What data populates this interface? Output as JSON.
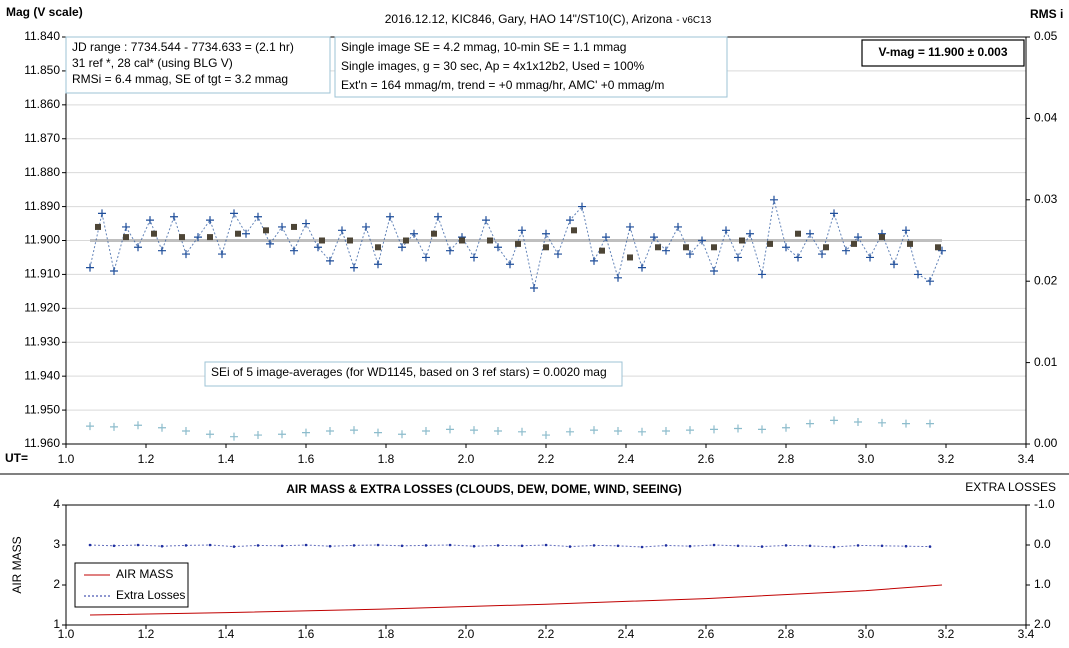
{
  "chart_data": [
    {
      "type": "scatter",
      "title": "2016.12.12,  KIC846, Gary, HAO 14\"/ST10(C), Arizona",
      "subtitle": "- v6C13",
      "ylabel": "Mag (V scale)",
      "y2label": "RMS i",
      "xlabel": "UT=",
      "xlim": [
        1.0,
        3.4
      ],
      "xticks": [
        {
          "value": 1.0,
          "label": "1.0"
        },
        1.2,
        1.4,
        1.6,
        1.8,
        {
          "value": 2.0,
          "label": "2.0"
        },
        2.2,
        2.4,
        2.6,
        2.8,
        {
          "value": 3.0,
          "label": "3.0"
        },
        3.2,
        3.4
      ],
      "ylim": [
        11.84,
        11.96
      ],
      "y_inverted": true,
      "yticks": [
        {
          "value": 11.84,
          "label": "11.840"
        },
        {
          "value": 11.85,
          "label": "11.850"
        },
        {
          "value": 11.86,
          "label": "11.860"
        },
        {
          "value": 11.87,
          "label": "11.870"
        },
        {
          "value": 11.88,
          "label": "11.880"
        },
        {
          "value": 11.89,
          "label": "11.890"
        },
        {
          "value": 11.9,
          "label": "11.900"
        },
        {
          "value": 11.91,
          "label": "11.910"
        },
        {
          "value": 11.92,
          "label": "11.920"
        },
        {
          "value": 11.93,
          "label": "11.930"
        },
        {
          "value": 11.94,
          "label": "11.940"
        },
        {
          "value": 11.95,
          "label": "11.950"
        },
        {
          "value": 11.96,
          "label": "11.960"
        }
      ],
      "y2lim": [
        0,
        0.05
      ],
      "y2ticks": [
        {
          "value": 0,
          "label": "0.00"
        },
        0.01,
        0.02,
        0.03,
        0.04,
        0.05
      ],
      "grid": true,
      "annotations": [
        [
          "JD range  : 7734.544 - 7734.633 = (2.1 hr)",
          "31 ref *, 28 cal* (using BLG V)",
          "RMSi = 6.4 mmag, SE of tgt = 3.2 mmag"
        ],
        [
          "Single image SE = 4.2 mmag, 10-min SE = 1.1 mmag",
          "Single images, g = 30 sec, Ap = 4x1x12b2,  Used = 100%",
          "Ext'n = 164 mmag/m, trend = +0 mmag/hr, AMC' +0 mmag/m"
        ],
        [
          "V-mag = 11.900 ± 0.003"
        ],
        [
          "SEi of 5 image-averages (for WD1145, based on 3 ref stars) = 0.0020 mag"
        ]
      ],
      "series": [
        {
          "color": "#bfbfbf",
          "marker": "none",
          "line": "thick",
          "x": [
            1.06,
            3.19
          ],
          "values": [
            11.9,
            11.9
          ]
        },
        {
          "color": "#1f4e9a",
          "marker": "plus",
          "line": "dotted",
          "x": [
            1.06,
            1.09,
            1.12,
            1.15,
            1.18,
            1.21,
            1.24,
            1.27,
            1.3,
            1.33,
            1.36,
            1.39,
            1.42,
            1.45,
            1.48,
            1.51,
            1.54,
            1.57,
            1.6,
            1.63,
            1.66,
            1.69,
            1.72,
            1.75,
            1.78,
            1.81,
            1.84,
            1.87,
            1.9,
            1.93,
            1.96,
            1.99,
            2.02,
            2.05,
            2.08,
            2.11,
            2.14,
            2.17,
            2.2,
            2.23,
            2.26,
            2.29,
            2.32,
            2.35,
            2.38,
            2.41,
            2.44,
            2.47,
            2.5,
            2.53,
            2.56,
            2.59,
            2.62,
            2.65,
            2.68,
            2.71,
            2.74,
            2.77,
            2.8,
            2.83,
            2.86,
            2.89,
            2.92,
            2.95,
            2.98,
            3.01,
            3.04,
            3.07,
            3.1,
            3.13,
            3.16,
            3.19
          ],
          "values": [
            11.908,
            11.892,
            11.909,
            11.896,
            11.902,
            11.894,
            11.903,
            11.893,
            11.904,
            11.899,
            11.894,
            11.904,
            11.892,
            11.898,
            11.893,
            11.901,
            11.896,
            11.903,
            11.895,
            11.902,
            11.906,
            11.897,
            11.908,
            11.896,
            11.907,
            11.893,
            11.902,
            11.898,
            11.905,
            11.893,
            11.903,
            11.899,
            11.905,
            11.894,
            11.902,
            11.907,
            11.897,
            11.914,
            11.898,
            11.904,
            11.894,
            11.89,
            11.906,
            11.899,
            11.911,
            11.896,
            11.908,
            11.899,
            11.903,
            11.896,
            11.904,
            11.9,
            11.909,
            11.897,
            11.905,
            11.898,
            11.91,
            11.888,
            11.902,
            11.905,
            11.898,
            11.904,
            11.892,
            11.903,
            11.899,
            11.905,
            11.898,
            11.907,
            11.897,
            11.91,
            11.912,
            11.903
          ]
        },
        {
          "color": "#4d4536",
          "marker": "square",
          "line": "none",
          "x": [
            1.08,
            1.15,
            1.22,
            1.29,
            1.36,
            1.43,
            1.5,
            1.57,
            1.64,
            1.71,
            1.78,
            1.85,
            1.92,
            1.99,
            2.06,
            2.13,
            2.2,
            2.27,
            2.34,
            2.41,
            2.48,
            2.55,
            2.62,
            2.69,
            2.76,
            2.83,
            2.9,
            2.97,
            3.04,
            3.11,
            3.18
          ],
          "values": [
            11.896,
            11.899,
            11.898,
            11.899,
            11.899,
            11.898,
            11.897,
            11.896,
            11.9,
            11.9,
            11.902,
            11.9,
            11.898,
            11.9,
            11.9,
            11.901,
            11.902,
            11.897,
            11.903,
            11.905,
            11.902,
            11.902,
            11.902,
            11.9,
            11.901,
            11.898,
            11.902,
            11.901,
            11.899,
            11.901,
            11.902
          ]
        },
        {
          "color": "#8cbccc",
          "marker": "plus",
          "line": "none",
          "axis": "y2",
          "x": [
            1.06,
            1.12,
            1.18,
            1.24,
            1.3,
            1.36,
            1.42,
            1.48,
            1.54,
            1.6,
            1.66,
            1.72,
            1.78,
            1.84,
            1.9,
            1.96,
            2.02,
            2.08,
            2.14,
            2.2,
            2.26,
            2.32,
            2.38,
            2.44,
            2.5,
            2.56,
            2.62,
            2.68,
            2.74,
            2.8,
            2.86,
            2.92,
            2.98,
            3.04,
            3.1,
            3.16
          ],
          "values": [
            0.0022,
            0.0021,
            0.0023,
            0.002,
            0.0016,
            0.0012,
            0.0009,
            0.0011,
            0.0012,
            0.0014,
            0.0016,
            0.0017,
            0.0014,
            0.0012,
            0.0016,
            0.0018,
            0.0017,
            0.0016,
            0.0015,
            0.0011,
            0.0015,
            0.0017,
            0.0016,
            0.0015,
            0.0016,
            0.0017,
            0.0018,
            0.0019,
            0.0018,
            0.002,
            0.0025,
            0.0029,
            0.0027,
            0.0026,
            0.0025,
            0.0025
          ]
        }
      ]
    },
    {
      "type": "line",
      "title": "AIR MASS & EXTRA LOSSES (CLOUDS, DEW, DOME, WIND, SEEING)",
      "ylabel": "AIR MASS",
      "y2label": "EXTRA LOSSES",
      "xlim": [
        1.0,
        3.4
      ],
      "xticks": [
        {
          "value": 1.0,
          "label": "1.0"
        },
        1.2,
        1.4,
        1.6,
        1.8,
        {
          "value": 2.0,
          "label": "2.0"
        },
        2.2,
        2.4,
        2.6,
        2.8,
        {
          "value": 3.0,
          "label": "3.0"
        },
        3.2,
        3.4
      ],
      "ylim": [
        1,
        4
      ],
      "yticks": [
        1,
        2,
        3,
        4
      ],
      "y2lim": [
        -1,
        2
      ],
      "y2_inverted": true,
      "y2ticks": [
        {
          "value": -1,
          "label": "-1.0"
        },
        {
          "value": 0,
          "label": "0.0"
        },
        {
          "value": 1,
          "label": "1.0"
        },
        {
          "value": 2,
          "label": "2.0"
        }
      ],
      "grid": false,
      "legend": "lower left",
      "series": [
        {
          "name": "AIR MASS",
          "color": "#c00000",
          "marker": "none",
          "line": "solid",
          "x": [
            1.06,
            1.4,
            1.8,
            2.2,
            2.6,
            3.0,
            3.19
          ],
          "values": [
            1.25,
            1.31,
            1.4,
            1.52,
            1.66,
            1.86,
            2.0
          ]
        },
        {
          "name": "Extra Losses",
          "color": "#1f2fa0",
          "marker": "dot",
          "line": "dotted",
          "axis": "y2",
          "x": [
            1.06,
            1.12,
            1.18,
            1.24,
            1.3,
            1.36,
            1.42,
            1.48,
            1.54,
            1.6,
            1.66,
            1.72,
            1.78,
            1.84,
            1.9,
            1.96,
            2.02,
            2.08,
            2.14,
            2.2,
            2.26,
            2.32,
            2.38,
            2.44,
            2.5,
            2.56,
            2.62,
            2.68,
            2.74,
            2.8,
            2.86,
            2.92,
            2.98,
            3.04,
            3.1,
            3.16
          ],
          "values": [
            0.0,
            0.02,
            0.0,
            0.03,
            0.01,
            0.0,
            0.04,
            0.01,
            0.02,
            0.0,
            0.03,
            0.01,
            0.0,
            0.02,
            0.01,
            0.0,
            0.03,
            0.01,
            0.02,
            0.0,
            0.04,
            0.01,
            0.02,
            0.05,
            0.01,
            0.03,
            0.0,
            0.02,
            0.04,
            0.01,
            0.02,
            0.05,
            0.01,
            0.02,
            0.03,
            0.04
          ]
        }
      ]
    }
  ]
}
